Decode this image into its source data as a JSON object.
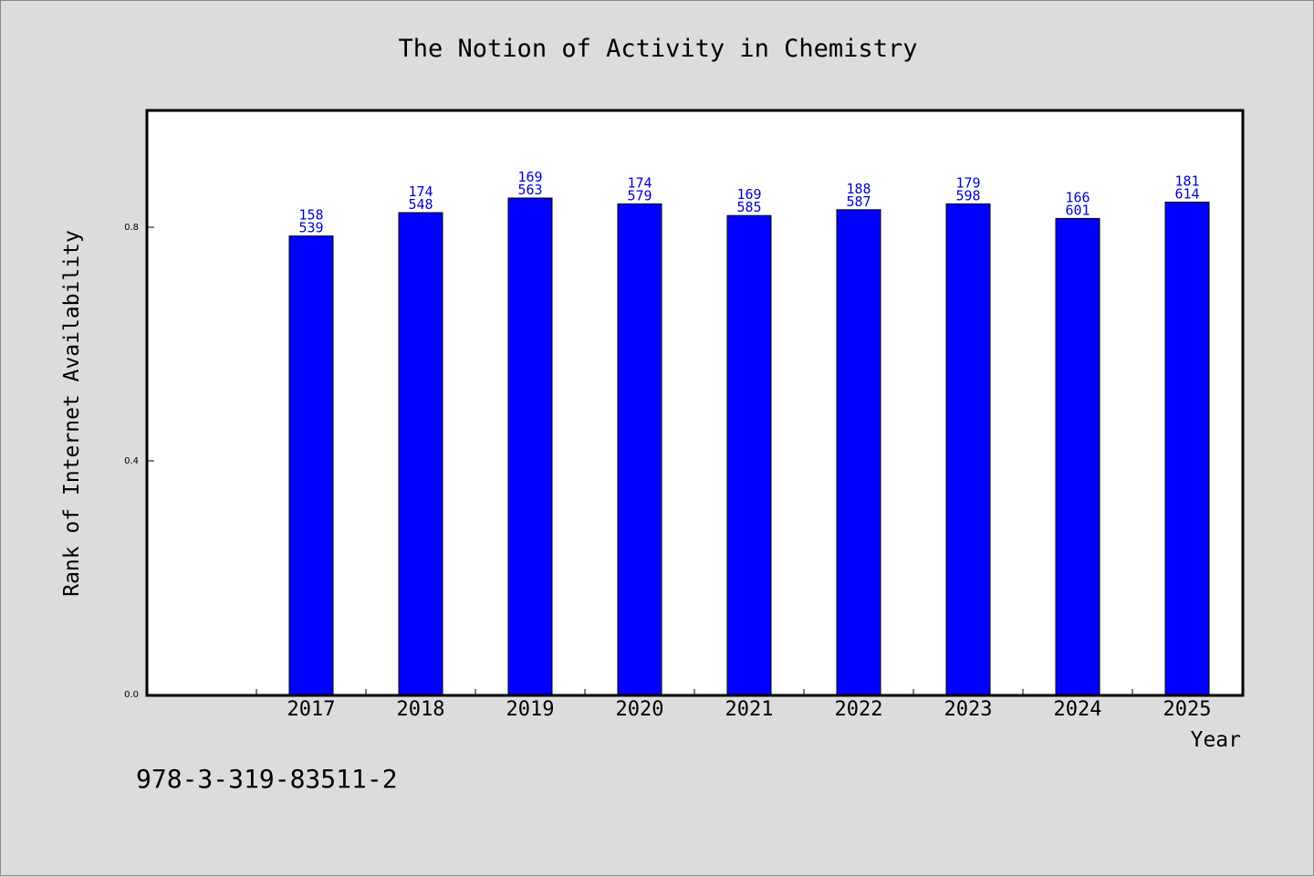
{
  "chart_data": {
    "type": "bar",
    "title": "The Notion of Activity in Chemistry",
    "xlabel": "Year",
    "ylabel": "Rank of Internet Availability",
    "categories": [
      "2017",
      "2018",
      "2019",
      "2020",
      "2021",
      "2022",
      "2023",
      "2024",
      "2025"
    ],
    "values": [
      0.785,
      0.825,
      0.85,
      0.84,
      0.82,
      0.83,
      0.84,
      0.815,
      0.843
    ],
    "data_labels": [
      [
        "158",
        "539"
      ],
      [
        "174",
        "548"
      ],
      [
        "169",
        "563"
      ],
      [
        "174",
        "579"
      ],
      [
        "169",
        "585"
      ],
      [
        "188",
        "587"
      ],
      [
        "179",
        "598"
      ],
      [
        "166",
        "601"
      ],
      [
        "181",
        "614"
      ]
    ],
    "yticks": [
      "0.0",
      "0.4",
      "0.8"
    ],
    "ytick_values": [
      0.0,
      0.4,
      0.8
    ],
    "ylim": [
      0.0,
      1.0
    ],
    "bar_color": "#0000ff",
    "label_color": "#0000cc",
    "grid": false,
    "legend": "none"
  },
  "footnote": "978-3-319-83511-2"
}
